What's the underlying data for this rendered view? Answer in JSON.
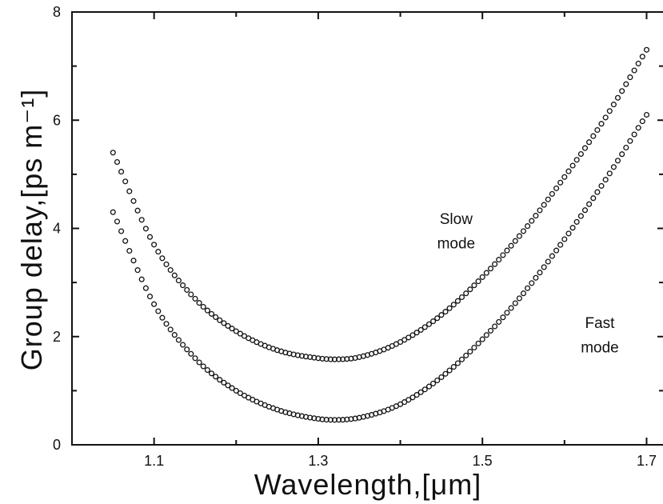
{
  "chart_data": {
    "type": "scatter",
    "xlabel": "Wavelength,[μm]",
    "ylabel": "Group delay,[ps m⁻¹]",
    "xlim": [
      1.0,
      1.72
    ],
    "ylim": [
      0,
      8
    ],
    "x_ticks": [
      1.1,
      1.3,
      1.5,
      1.7
    ],
    "x_tick_labels": [
      "1.1",
      "1.3",
      "1.5",
      "1.7"
    ],
    "x_minor_ticks": [
      1.2,
      1.4,
      1.6
    ],
    "y_ticks": [
      0,
      2,
      4,
      6,
      8
    ],
    "y_tick_labels": [
      "0",
      "2",
      "4",
      "6",
      "8"
    ],
    "y_minor_ticks": [
      1,
      3,
      5,
      7
    ],
    "marker": "open-circle",
    "grid": false,
    "legend": "none",
    "x_range": [
      1.05,
      1.7
    ],
    "series": [
      {
        "x": [
          1.05,
          1.1,
          1.15,
          1.2,
          1.25,
          1.3,
          1.32,
          1.35,
          1.4,
          1.45,
          1.5,
          1.55,
          1.6,
          1.65,
          1.7
        ],
        "values": [
          5.4,
          3.7,
          2.7,
          2.1,
          1.75,
          1.6,
          1.58,
          1.62,
          1.9,
          2.4,
          3.1,
          3.95,
          4.95,
          6.05,
          7.3
        ]
      },
      {
        "x": [
          1.05,
          1.1,
          1.15,
          1.2,
          1.25,
          1.3,
          1.32,
          1.35,
          1.4,
          1.45,
          1.5,
          1.55,
          1.6,
          1.65,
          1.7
        ],
        "values": [
          4.3,
          2.6,
          1.6,
          1.0,
          0.65,
          0.48,
          0.46,
          0.5,
          0.75,
          1.25,
          1.95,
          2.8,
          3.8,
          4.9,
          6.1
        ]
      }
    ],
    "annotations": [
      {
        "text": "Slow",
        "x": 1.468,
        "y": 4.08
      },
      {
        "text": "mode",
        "x": 1.468,
        "y": 3.63
      },
      {
        "text": "Fast",
        "x": 1.643,
        "y": 2.16
      },
      {
        "text": "mode",
        "x": 1.643,
        "y": 1.71
      }
    ]
  }
}
